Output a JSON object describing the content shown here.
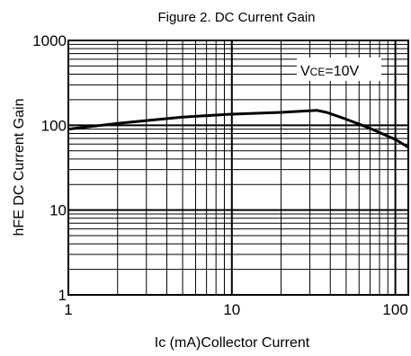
{
  "chart_data": {
    "type": "line",
    "title": "Figure 2. DC Current Gain",
    "xlabel_sub": "Ic",
    "xlabel_main": "(mA)Collector Current",
    "ylabel_sub": "hFE",
    "ylabel_main": "DC Current Gain",
    "x_scale": "log",
    "y_scale": "log",
    "xlim": [
      1,
      120
    ],
    "ylim": [
      1,
      1000
    ],
    "x_ticks": [
      {
        "value": 1,
        "label": "1"
      },
      {
        "value": 10,
        "label": "10"
      },
      {
        "value": 100,
        "label": "100"
      }
    ],
    "y_ticks": [
      {
        "value": 1,
        "label": "1"
      },
      {
        "value": 10,
        "label": "10"
      },
      {
        "value": 100,
        "label": "100"
      },
      {
        "value": 1000,
        "label": "1000"
      }
    ],
    "grid": true,
    "annotation": {
      "main": "V",
      "sub": "CE",
      "value": "=10V"
    },
    "series": [
      {
        "x": [
          1,
          2,
          5,
          10,
          20,
          33,
          38,
          50,
          70,
          100,
          120
        ],
        "y": [
          90,
          105,
          125,
          135,
          142,
          150,
          142,
          118,
          92,
          68,
          55
        ]
      }
    ]
  },
  "colors": {
    "line": "#000000",
    "grid": "#000000",
    "background": "#ffffff"
  }
}
